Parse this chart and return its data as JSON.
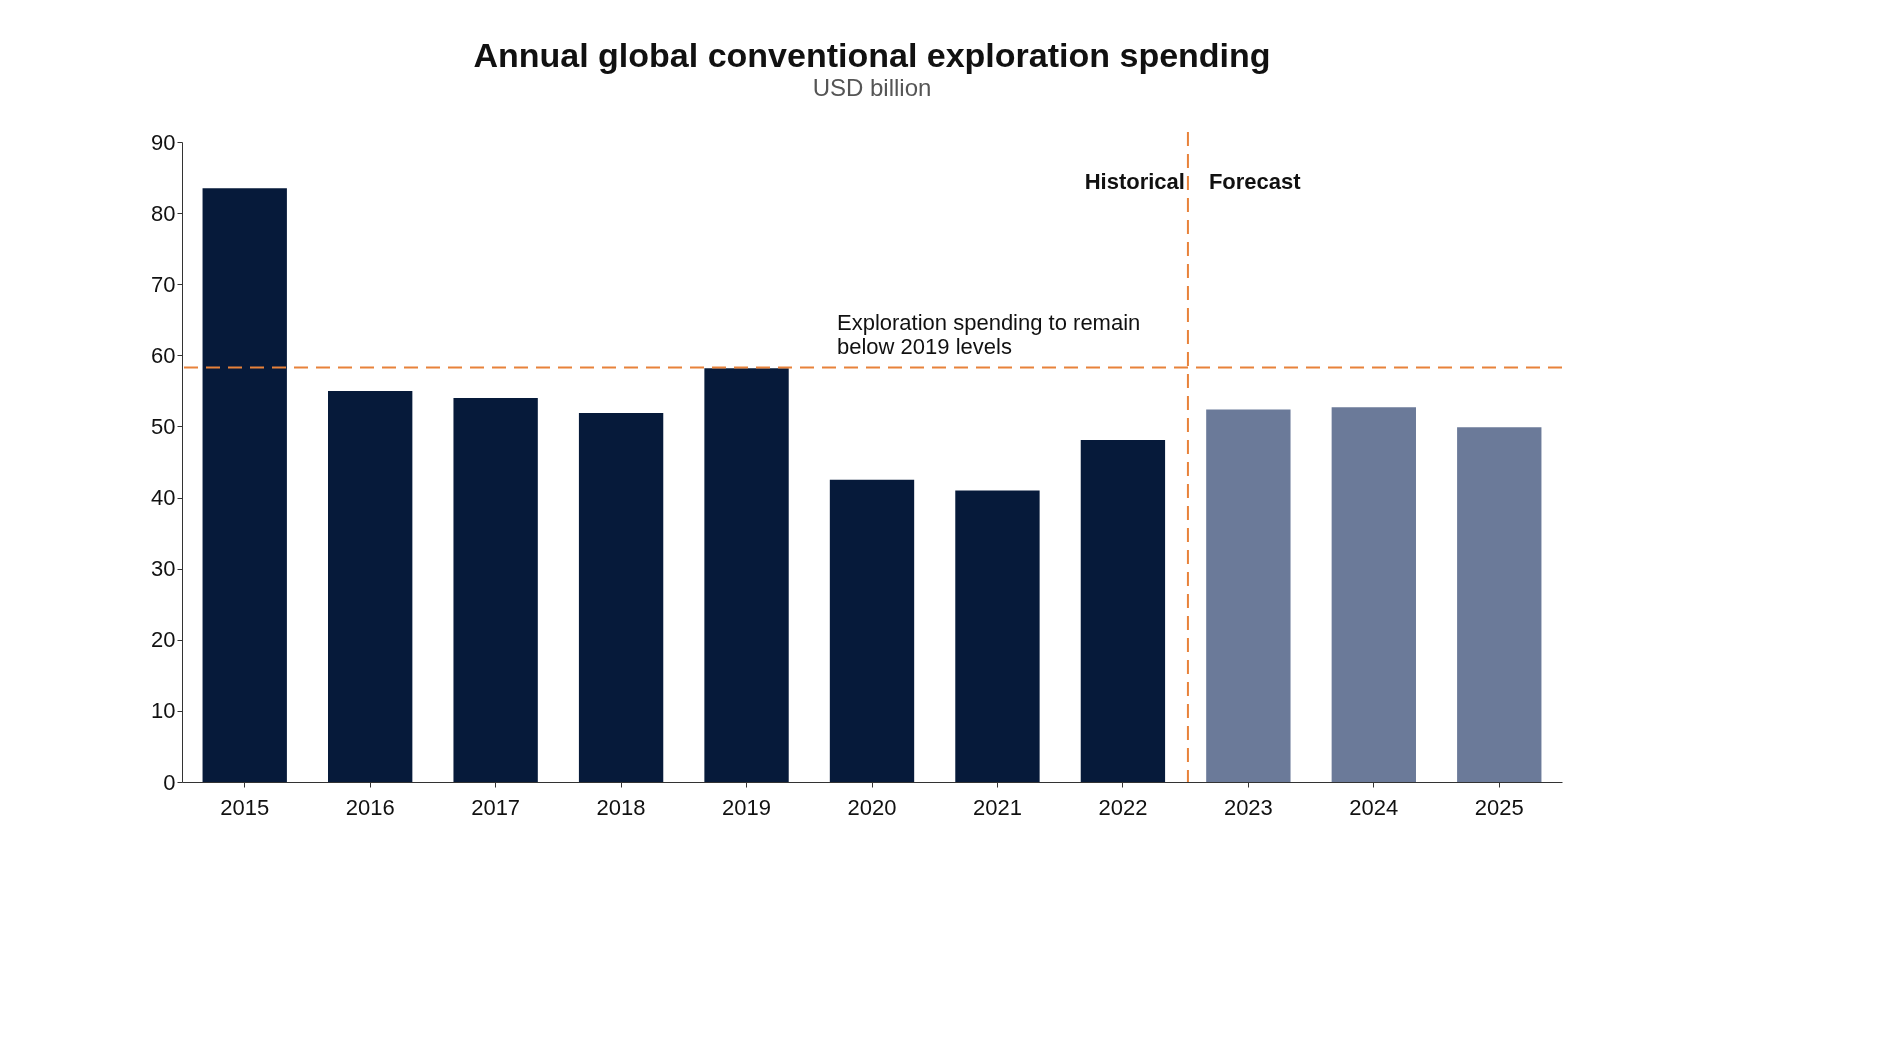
{
  "chart_data": {
    "type": "bar",
    "title": "Annual global conventional exploration spending",
    "subtitle": "USD billion",
    "categories": [
      "2015",
      "2016",
      "2017",
      "2018",
      "2019",
      "2020",
      "2021",
      "2022",
      "2023",
      "2024",
      "2025"
    ],
    "values": [
      83.5,
      55,
      54,
      51.9,
      58.2,
      42.5,
      41,
      48.1,
      52.4,
      52.7,
      49.9
    ],
    "colors": [
      "#061a3a",
      "#061a3a",
      "#061a3a",
      "#061a3a",
      "#061a3a",
      "#061a3a",
      "#061a3a",
      "#061a3a",
      "#6b7a99",
      "#6b7a99",
      "#6b7a99"
    ],
    "ylim": [
      0,
      90
    ],
    "yticks": [
      0,
      10,
      20,
      30,
      40,
      50,
      60,
      70,
      80,
      90
    ],
    "grid": false,
    "ref_lines": [
      {
        "axis": "y",
        "value": 58.3,
        "label": "Exploration spending to remain below 2019 levels",
        "color": "#e8823a",
        "line_style": "dashed"
      },
      {
        "axis": "x",
        "value": "2023",
        "label": null,
        "color": "#e8823a",
        "line_style": "dashed"
      }
    ],
    "annotations": [
      "Historical",
      "Forecast"
    ]
  }
}
